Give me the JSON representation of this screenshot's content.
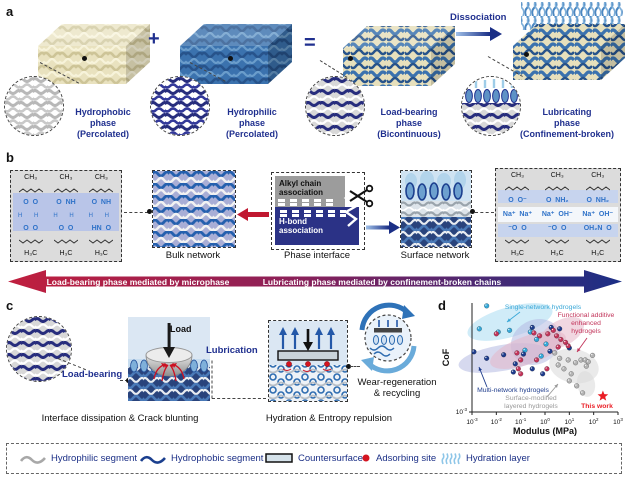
{
  "colors": {
    "navy_text": "#20308f",
    "beige_phase": "#e9e2bf",
    "blue_phase": "#3b72ae",
    "red_accent": "#c01f3e",
    "gradient_arrow": [
      "#c01f3e",
      "#1b2f86"
    ],
    "light_blue_bg": "#dbe7f3"
  },
  "panel_a": {
    "label": "a",
    "plus": "+",
    "equals": "=",
    "dissociation": "Dissociation",
    "captions": {
      "hydrophobic": "Hydrophobic\nphase\n(Percolated)",
      "hydrophilic": "Hydrophilic\nphase\n(Percolated)",
      "load_bearing": "Load-bearing\nphase\n(Bicontinuous)",
      "lubricating": "Lubricating\nphase\n(Confinement-broken)"
    }
  },
  "panel_b": {
    "label": "b",
    "bulk_network": "Bulk network",
    "phase_interface": "Phase interface",
    "surface_network": "Surface network",
    "alkyl": "Alkyl chain\nassociation",
    "hbond": "H-bond\nassociation",
    "arrow_left_text": "Load-bearing phase mediated by microphase confinement",
    "arrow_right_text": "Lubricating phase mediated by confinement-broken chains",
    "left_chem": {
      "cols": [
        {
          "top": "CH₃",
          "r1": "O  O",
          "mid": "H H",
          "r3": "O  O",
          "bottom": "H₃C"
        },
        {
          "top": "CH₃",
          "r1": "O  NH",
          "mid": "H H",
          "r3": "O  O",
          "bottom": "H₃C"
        },
        {
          "top": "CH₃",
          "r1": "O  NH",
          "mid": "H H",
          "r3": "HN  O",
          "bottom": "H₃C"
        }
      ]
    },
    "right_chem": {
      "cols": [
        {
          "top": "CH₃",
          "rA": "O  O⁻",
          "ions": "Na⁺  Na⁺",
          "rB": "⁻O  O",
          "bottom": "H₃C"
        },
        {
          "top": "CH₃",
          "rA": "O  NH₂",
          "ions": "Na⁺  OH⁻",
          "rB": "⁻O  O",
          "bottom": "H₃C"
        },
        {
          "top": "CH₃",
          "rA": "O  NH₂",
          "ions": "Na⁺  OH⁻",
          "rB": "OH₂N  O",
          "bottom": "H₃C"
        }
      ]
    }
  },
  "panel_c": {
    "label": "c",
    "load": "Load",
    "load_bearing": "Load-bearing",
    "lubrication": "Lubrication",
    "caption_interface": "Interface dissipation & Crack blunting",
    "caption_hydration": "Hydration & Entropy repulsion",
    "caption_wear": "Wear-regeneration\n& recycling"
  },
  "panel_d": {
    "label": "d"
  },
  "chart_data": {
    "type": "scatter",
    "xlabel": "Modulus (MPa)",
    "ylabel": "CoF",
    "xscale": "log",
    "yscale": "log",
    "xlim": [
      0.001,
      1000
    ],
    "ylim": [
      0.001,
      0.5
    ],
    "x_tick_exponents": [
      -3,
      -2,
      -1,
      0,
      1,
      2,
      3
    ],
    "y_tick_exponents": [
      -1,
      -2,
      -3
    ],
    "grid": false,
    "legend_position": "annotations-inside",
    "series": [
      {
        "name": "Single-network hydrogels",
        "name_lines": [
          "Single-network hydrogels"
        ],
        "color": "#35a8d8",
        "text_color": "#3aa8d8",
        "points": [
          [
            0.004,
            0.45
          ],
          [
            0.002,
            0.12
          ],
          [
            0.012,
            0.1
          ],
          [
            0.035,
            0.11
          ],
          [
            0.25,
            0.1
          ],
          [
            0.45,
            0.065
          ],
          [
            0.15,
            0.035
          ],
          [
            0.7,
            0.025
          ],
          [
            1.1,
            0.05
          ]
        ]
      },
      {
        "name": "Multi-network hydrogels",
        "name_lines": [
          "Multi-network hydrogels"
        ],
        "color": "#1e3c8c",
        "text_color": "#1e3c8c",
        "points": [
          [
            0.0012,
            0.032
          ],
          [
            0.004,
            0.022
          ],
          [
            0.02,
            0.027
          ],
          [
            0.06,
            0.016
          ],
          [
            0.13,
            0.028
          ],
          [
            0.3,
            0.13
          ],
          [
            1.8,
            0.13
          ],
          [
            4,
            0.12
          ],
          [
            10,
            0.04
          ],
          [
            0.8,
            0.009
          ],
          [
            0.3,
            0.012
          ],
          [
            1.6,
            0.033
          ],
          [
            0.05,
            0.01
          ]
        ]
      },
      {
        "name": "Functional additive enhanced hydrogels",
        "name_lines": [
          "Functional additive",
          "enhanced",
          "hydrogels"
        ],
        "color": "#c2345a",
        "text_color": "#c2345a",
        "points": [
          [
            0.01,
            0.09
          ],
          [
            0.07,
            0.03
          ],
          [
            0.1,
            0.02
          ],
          [
            0.08,
            0.012
          ],
          [
            0.1,
            0.009
          ],
          [
            0.35,
            0.095
          ],
          [
            0.6,
            0.08
          ],
          [
            1.3,
            0.09
          ],
          [
            2.2,
            0.11
          ],
          [
            3,
            0.08
          ],
          [
            4.5,
            0.065
          ],
          [
            7,
            0.055
          ],
          [
            9,
            0.045
          ],
          [
            0.45,
            0.02
          ],
          [
            1.2,
            0.012
          ],
          [
            3.5,
            0.042
          ]
        ]
      },
      {
        "name": "Surface-modified layered hydrogels",
        "name_lines": [
          "Surface-modified",
          "layered hydrogels"
        ],
        "color": "#b3b3b3",
        "text_color": "#999999",
        "points": [
          [
            2.5,
            0.03
          ],
          [
            4,
            0.022
          ],
          [
            3.5,
            0.015
          ],
          [
            6,
            0.012
          ],
          [
            9,
            0.02
          ],
          [
            12,
            0.009
          ],
          [
            18,
            0.017
          ],
          [
            30,
            0.02
          ],
          [
            45,
            0.02
          ],
          [
            50,
            0.014
          ],
          [
            90,
            0.026
          ],
          [
            20,
            0.0045
          ],
          [
            35,
            0.003
          ],
          [
            10,
            0.006
          ],
          [
            60,
            0.018
          ]
        ]
      },
      {
        "name": "This work",
        "name_lines": [
          "This work"
        ],
        "color": "#ea1c24",
        "text_color": "#ea1c24",
        "marker": "star",
        "points": [
          [
            240,
            0.0025
          ]
        ]
      }
    ]
  },
  "legend_bar": {
    "items": [
      {
        "icon": "hydrophilic-segment-icon",
        "label": "Hydrophilic segment"
      },
      {
        "icon": "hydrophobic-segment-icon",
        "label": "Hydrophobic segment"
      },
      {
        "icon": "countersurface-icon",
        "label": "Countersurface"
      },
      {
        "icon": "adsorbing-site-icon",
        "label": "Adsorbing site"
      },
      {
        "icon": "hydration-layer-icon",
        "label": "Hydration layer"
      }
    ]
  }
}
